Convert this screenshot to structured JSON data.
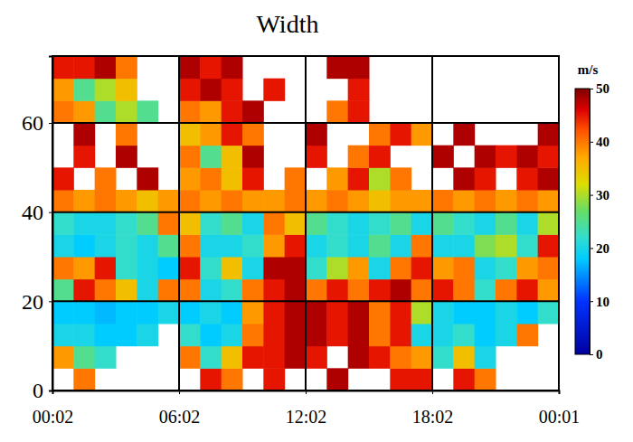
{
  "chart_data": {
    "type": "heatmap",
    "title": "Width",
    "x": [
      0,
      1,
      2,
      3,
      4,
      5,
      6,
      7,
      8,
      9,
      10,
      11,
      12,
      13,
      14,
      15,
      16,
      17,
      18,
      19,
      20,
      21,
      22,
      23,
      24
    ],
    "y": [
      0,
      5,
      10,
      15,
      20,
      25,
      30,
      35,
      40,
      45,
      50,
      55,
      60,
      65,
      70,
      75
    ],
    "z": [
      [
        null,
        40,
        null,
        null,
        null,
        null,
        null,
        45,
        40,
        null,
        45,
        null,
        null,
        48,
        null,
        null,
        45,
        45,
        null,
        45,
        40,
        null,
        null,
        null
      ],
      [
        38,
        25,
        22,
        null,
        null,
        null,
        40,
        22,
        35,
        45,
        45,
        48,
        45,
        null,
        48,
        45,
        40,
        38,
        22,
        35,
        20,
        null,
        null,
        null
      ],
      [
        20,
        20,
        18,
        18,
        20,
        null,
        22,
        18,
        20,
        40,
        45,
        48,
        48,
        45,
        48,
        40,
        45,
        20,
        20,
        22,
        18,
        20,
        40,
        null
      ],
      [
        18,
        18,
        17,
        18,
        18,
        20,
        18,
        20,
        18,
        38,
        45,
        48,
        48,
        45,
        48,
        40,
        45,
        30,
        20,
        18,
        18,
        20,
        18,
        22
      ],
      [
        25,
        45,
        40,
        35,
        20,
        40,
        40,
        20,
        22,
        40,
        45,
        48,
        40,
        45,
        40,
        45,
        48,
        40,
        45,
        40,
        22,
        40,
        45,
        38
      ],
      [
        40,
        38,
        45,
        22,
        20,
        18,
        45,
        22,
        35,
        20,
        48,
        48,
        22,
        30,
        38,
        20,
        40,
        45,
        38,
        40,
        20,
        22,
        38,
        40
      ],
      [
        20,
        18,
        20,
        22,
        20,
        25,
        40,
        20,
        20,
        22,
        38,
        45,
        20,
        22,
        20,
        25,
        20,
        40,
        20,
        20,
        28,
        30,
        22,
        45
      ],
      [
        22,
        20,
        20,
        22,
        25,
        40,
        35,
        22,
        25,
        20,
        40,
        35,
        25,
        22,
        20,
        22,
        25,
        20,
        25,
        22,
        20,
        25,
        20,
        30
      ],
      [
        40,
        38,
        40,
        38,
        35,
        38,
        40,
        38,
        40,
        38,
        38,
        40,
        38,
        40,
        38,
        35,
        38,
        38,
        40,
        38,
        40,
        38,
        40,
        38
      ],
      [
        45,
        null,
        40,
        null,
        48,
        null,
        38,
        40,
        35,
        45,
        null,
        40,
        null,
        38,
        45,
        30,
        40,
        null,
        null,
        48,
        45,
        null,
        45,
        48
      ],
      [
        null,
        45,
        null,
        48,
        null,
        null,
        40,
        25,
        35,
        48,
        null,
        null,
        45,
        null,
        40,
        45,
        null,
        null,
        48,
        null,
        48,
        45,
        48,
        45
      ],
      [
        null,
        48,
        null,
        40,
        null,
        null,
        35,
        38,
        45,
        40,
        null,
        null,
        48,
        null,
        null,
        40,
        45,
        38,
        null,
        48,
        null,
        null,
        null,
        48
      ],
      [
        40,
        38,
        25,
        30,
        25,
        null,
        40,
        38,
        45,
        48,
        null,
        null,
        null,
        40,
        45,
        null,
        null,
        null,
        null,
        null,
        null,
        null,
        null,
        null
      ],
      [
        38,
        25,
        30,
        35,
        null,
        null,
        45,
        48,
        45,
        null,
        45,
        null,
        null,
        null,
        45,
        null,
        null,
        null,
        null,
        null,
        null,
        null,
        null,
        null
      ],
      [
        45,
        45,
        48,
        40,
        null,
        null,
        48,
        45,
        48,
        null,
        null,
        null,
        null,
        48,
        48,
        null,
        null,
        null,
        null,
        null,
        null,
        null,
        null,
        null
      ]
    ],
    "xlim": [
      0,
      24
    ],
    "xticks": [
      {
        "value": 0,
        "label": "00:02"
      },
      {
        "value": 6,
        "label": "06:02"
      },
      {
        "value": 12,
        "label": "12:02"
      },
      {
        "value": 18,
        "label": "18:02"
      },
      {
        "value": 24,
        "label": "00:01"
      }
    ],
    "ylim": [
      0,
      75
    ],
    "yticks": [
      0,
      20,
      40,
      60
    ],
    "grid": true,
    "colorbar": {
      "range": [
        0,
        50
      ],
      "ticks": [
        0,
        10,
        20,
        30,
        40,
        50
      ],
      "label": "m/s"
    }
  }
}
